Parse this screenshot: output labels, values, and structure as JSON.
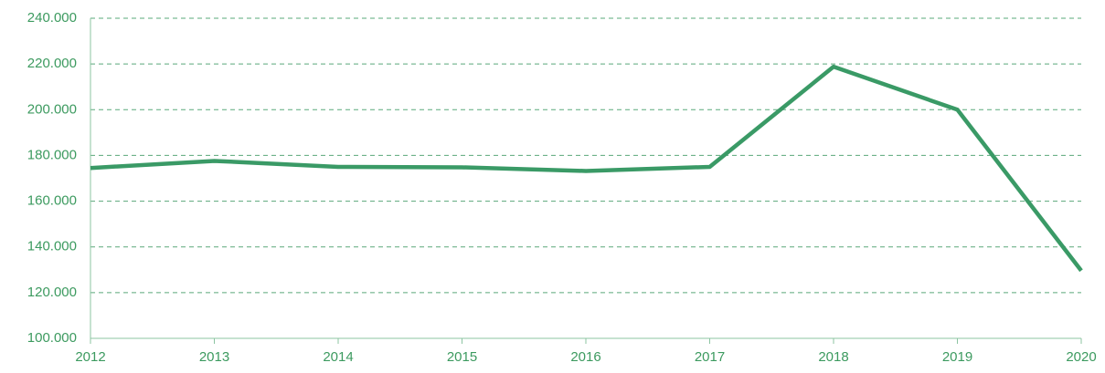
{
  "chart_data": {
    "type": "line",
    "categories": [
      "2012",
      "2013",
      "2014",
      "2015",
      "2016",
      "2017",
      "2018",
      "2019",
      "2020"
    ],
    "series": [
      {
        "color": "#3a9a66",
        "values": [
          174500,
          177600,
          175000,
          174800,
          173200,
          175000,
          218800,
          200000,
          129600
        ]
      }
    ],
    "ylim": [
      100000,
      240000
    ],
    "yticks": [
      {
        "value": 100000,
        "label": "100.000"
      },
      {
        "value": 120000,
        "label": "120.000"
      },
      {
        "value": 140000,
        "label": "140.000"
      },
      {
        "value": 160000,
        "label": "160.000"
      },
      {
        "value": 180000,
        "label": "180.000"
      },
      {
        "value": 200000,
        "label": "200.000"
      },
      {
        "value": 220000,
        "label": "220.000"
      },
      {
        "value": 240000,
        "label": "240.000"
      }
    ],
    "grid": true
  }
}
